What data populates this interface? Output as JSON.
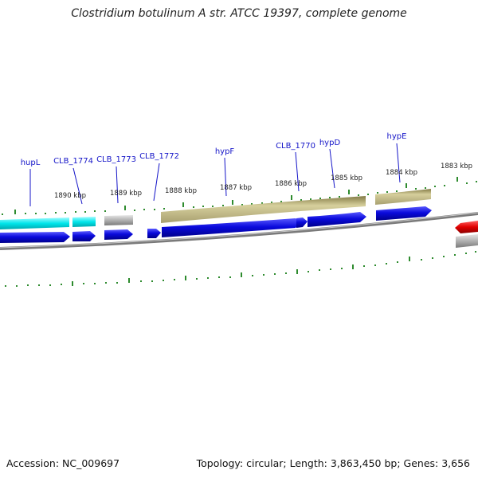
{
  "title": "Clostridium botulinum A str. ATCC 19397, complete genome",
  "footer": {
    "accession": "Accession: NC_009697",
    "stats": "Topology: circular; Length: 3,863,450 bp; Genes: 3,656"
  },
  "gene_labels": [
    "hupL",
    "CLB_1774",
    "CLB_1773",
    "CLB_1772",
    "hypF",
    "CLB_1770",
    "hypD",
    "hypE"
  ],
  "kbp_labels": [
    "1890 kbp",
    "1889 kbp",
    "1888 kbp",
    "1887 kbp",
    "1886 kbp",
    "1885 kbp",
    "1884 kbp",
    "1883 kbp"
  ],
  "colors": {
    "gene_forward": "#0a0adc",
    "cds_cyan": "#00e5ea",
    "cds_gray": "#b0b0b0",
    "cds_tan": "#b8b07a",
    "gene_red": "#e00000",
    "tick_green": "#2e8b2e",
    "label_blue": "#1414c8"
  }
}
